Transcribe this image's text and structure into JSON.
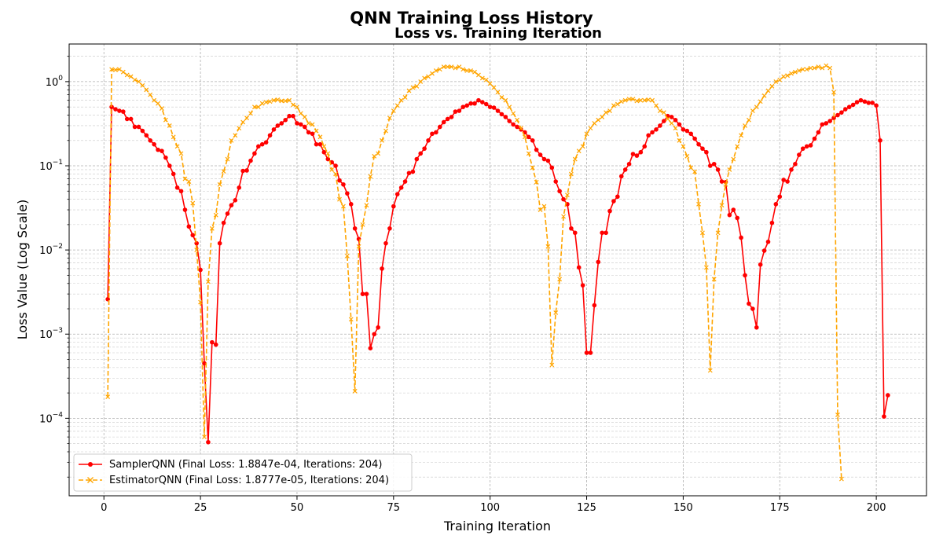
{
  "chart_data": {
    "type": "line",
    "suptitle": "QNN Training Loss History",
    "title": "Loss vs. Training Iteration",
    "xlabel": "Training Iteration",
    "ylabel": "Loss Value (Log Scale)",
    "y_scale": "log",
    "xlim": [
      -9,
      213
    ],
    "ylim": [
      1.2e-05,
      2.8
    ],
    "x_ticks": [
      0,
      25,
      50,
      75,
      100,
      125,
      150,
      175,
      200
    ],
    "y_ticks": [
      {
        "value": 0.0001,
        "base": "10",
        "exp": "−4"
      },
      {
        "value": 0.001,
        "base": "10",
        "exp": "−3"
      },
      {
        "value": 0.01,
        "base": "10",
        "exp": "−2"
      },
      {
        "value": 0.1,
        "base": "10",
        "exp": "−1"
      },
      {
        "value": 1,
        "base": "10",
        "exp": "0"
      }
    ],
    "grid": "major and minor, dashed",
    "legend_position": "lower-left",
    "series": [
      {
        "name": "SamplerQNN (Final Loss: 1.8847e-04, Iterations: 204)",
        "color": "#ff0000",
        "linestyle": "solid",
        "marker": "circle",
        "x_start": 1,
        "values": [
          0.0026,
          0.5,
          0.47,
          0.45,
          0.44,
          0.36,
          0.36,
          0.29,
          0.29,
          0.26,
          0.23,
          0.2,
          0.18,
          0.155,
          0.15,
          0.125,
          0.1,
          0.08,
          0.055,
          0.05,
          0.03,
          0.019,
          0.015,
          0.012,
          0.0058,
          0.00045,
          5.2e-05,
          0.0008,
          0.00075,
          0.012,
          0.021,
          0.027,
          0.034,
          0.039,
          0.055,
          0.087,
          0.088,
          0.115,
          0.14,
          0.17,
          0.18,
          0.19,
          0.23,
          0.27,
          0.3,
          0.32,
          0.35,
          0.39,
          0.39,
          0.32,
          0.31,
          0.29,
          0.25,
          0.24,
          0.18,
          0.18,
          0.145,
          0.12,
          0.11,
          0.1,
          0.067,
          0.06,
          0.047,
          0.035,
          0.018,
          0.0135,
          0.003,
          0.003,
          0.00068,
          0.001,
          0.0012,
          0.006,
          0.012,
          0.018,
          0.033,
          0.046,
          0.055,
          0.065,
          0.082,
          0.085,
          0.12,
          0.14,
          0.16,
          0.2,
          0.24,
          0.25,
          0.29,
          0.33,
          0.36,
          0.38,
          0.44,
          0.45,
          0.5,
          0.52,
          0.55,
          0.55,
          0.6,
          0.57,
          0.54,
          0.5,
          0.49,
          0.45,
          0.41,
          0.38,
          0.34,
          0.31,
          0.29,
          0.27,
          0.25,
          0.22,
          0.2,
          0.155,
          0.135,
          0.12,
          0.115,
          0.095,
          0.065,
          0.05,
          0.04,
          0.035,
          0.018,
          0.016,
          0.0062,
          0.0038,
          0.0006,
          0.0006,
          0.0022,
          0.0072,
          0.016,
          0.016,
          0.029,
          0.038,
          0.043,
          0.075,
          0.09,
          0.105,
          0.138,
          0.132,
          0.145,
          0.17,
          0.23,
          0.25,
          0.27,
          0.3,
          0.34,
          0.39,
          0.38,
          0.35,
          0.31,
          0.27,
          0.26,
          0.24,
          0.21,
          0.18,
          0.16,
          0.145,
          0.1,
          0.105,
          0.09,
          0.065,
          0.064,
          0.026,
          0.03,
          0.024,
          0.014,
          0.005,
          0.0023,
          0.002,
          0.0012,
          0.0067,
          0.0098,
          0.0125,
          0.021,
          0.035,
          0.043,
          0.068,
          0.065,
          0.09,
          0.105,
          0.135,
          0.16,
          0.17,
          0.175,
          0.21,
          0.25,
          0.31,
          0.32,
          0.34,
          0.37,
          0.4,
          0.43,
          0.47,
          0.5,
          0.53,
          0.57,
          0.6,
          0.58,
          0.56,
          0.56,
          0.52,
          0.2,
          0.000105,
          0.000188
        ]
      },
      {
        "name": "EstimatorQNN (Final Loss: 1.8777e-05, Iterations: 204)",
        "color": "#ffa500",
        "linestyle": "dashed",
        "marker": "x",
        "x_start": 1,
        "values": [
          0.00018,
          1.4,
          1.38,
          1.4,
          1.3,
          1.2,
          1.15,
          1.05,
          1.0,
          0.9,
          0.8,
          0.7,
          0.6,
          0.55,
          0.48,
          0.35,
          0.3,
          0.22,
          0.17,
          0.14,
          0.07,
          0.065,
          0.036,
          0.01,
          0.0024,
          6e-05,
          0.0042,
          0.018,
          0.026,
          0.06,
          0.086,
          0.12,
          0.2,
          0.23,
          0.28,
          0.33,
          0.37,
          0.42,
          0.5,
          0.5,
          0.55,
          0.57,
          0.58,
          0.6,
          0.61,
          0.59,
          0.59,
          0.6,
          0.53,
          0.5,
          0.42,
          0.38,
          0.32,
          0.31,
          0.26,
          0.22,
          0.17,
          0.14,
          0.09,
          0.08,
          0.04,
          0.033,
          0.0085,
          0.0015,
          0.00021,
          0.011,
          0.02,
          0.034,
          0.075,
          0.13,
          0.14,
          0.2,
          0.26,
          0.37,
          0.45,
          0.52,
          0.6,
          0.65,
          0.78,
          0.85,
          0.88,
          1.0,
          1.1,
          1.15,
          1.25,
          1.35,
          1.4,
          1.5,
          1.5,
          1.5,
          1.45,
          1.5,
          1.4,
          1.35,
          1.35,
          1.3,
          1.2,
          1.1,
          1.05,
          0.95,
          0.85,
          0.75,
          0.65,
          0.6,
          0.5,
          0.42,
          0.35,
          0.28,
          0.22,
          0.14,
          0.095,
          0.064,
          0.03,
          0.033,
          0.011,
          0.00043,
          0.0018,
          0.0045,
          0.025,
          0.045,
          0.08,
          0.12,
          0.15,
          0.17,
          0.24,
          0.28,
          0.32,
          0.35,
          0.38,
          0.43,
          0.45,
          0.52,
          0.54,
          0.58,
          0.6,
          0.62,
          0.62,
          0.59,
          0.6,
          0.6,
          0.61,
          0.6,
          0.52,
          0.45,
          0.43,
          0.36,
          0.32,
          0.28,
          0.2,
          0.17,
          0.13,
          0.095,
          0.085,
          0.035,
          0.016,
          0.0062,
          0.00037,
          0.0045,
          0.016,
          0.034,
          0.06,
          0.09,
          0.12,
          0.17,
          0.23,
          0.3,
          0.35,
          0.45,
          0.5,
          0.58,
          0.68,
          0.78,
          0.88,
          1.0,
          1.05,
          1.15,
          1.18,
          1.25,
          1.3,
          1.35,
          1.4,
          1.4,
          1.45,
          1.45,
          1.5,
          1.45,
          1.55,
          1.45,
          0.75,
          0.00011,
          1.9e-05
        ]
      }
    ]
  }
}
